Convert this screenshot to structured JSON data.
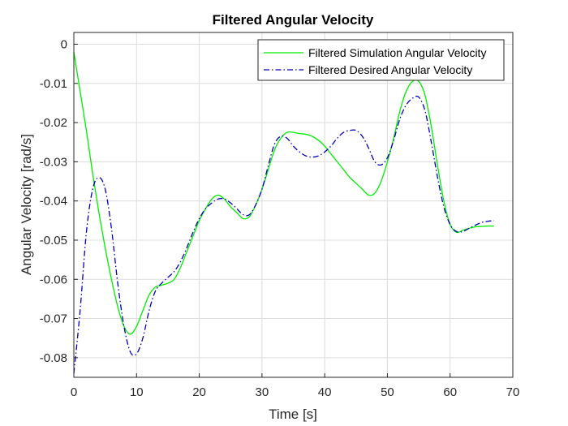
{
  "chart_data": {
    "type": "line",
    "title": "Filtered Angular Velocity",
    "xlabel": "Time [s]",
    "ylabel": "Angular Velocity [rad/s]",
    "xlim": [
      0,
      70
    ],
    "ylim": [
      -0.085,
      0.003
    ],
    "xticks": [
      0,
      10,
      20,
      30,
      40,
      50,
      60,
      70
    ],
    "yticks": [
      0,
      -0.01,
      -0.02,
      -0.03,
      -0.04,
      -0.05,
      -0.06,
      -0.07,
      -0.08
    ],
    "xtick_labels": [
      "0",
      "10",
      "20",
      "30",
      "40",
      "50",
      "60",
      "70"
    ],
    "ytick_labels": [
      "0",
      "-0.01",
      "-0.02",
      "-0.03",
      "-0.04",
      "-0.05",
      "-0.06",
      "-0.07",
      "-0.08"
    ],
    "grid": true,
    "legend_position": "top-right",
    "series": [
      {
        "name": "Filtered Simulation Angular Velocity",
        "color": "#00ee00",
        "style": "solid",
        "x": [
          0,
          1,
          2,
          3,
          4,
          5,
          6,
          7,
          8,
          9,
          10,
          11,
          12,
          13,
          14,
          15,
          16,
          17,
          18,
          19,
          20,
          21,
          22,
          23,
          24,
          25,
          26,
          27,
          28,
          29,
          30,
          31,
          32,
          33,
          34,
          35,
          36,
          37,
          38,
          39,
          40,
          41,
          42,
          43,
          44,
          45,
          46,
          47,
          48,
          49,
          50,
          51,
          52,
          53,
          54,
          55,
          56,
          57,
          58,
          59,
          60,
          61,
          62,
          63,
          64,
          65,
          66,
          67
        ],
        "y": [
          -0.002,
          -0.012,
          -0.022,
          -0.033,
          -0.043,
          -0.052,
          -0.06,
          -0.067,
          -0.072,
          -0.074,
          -0.072,
          -0.068,
          -0.064,
          -0.062,
          -0.0615,
          -0.061,
          -0.06,
          -0.057,
          -0.053,
          -0.049,
          -0.045,
          -0.042,
          -0.0395,
          -0.0385,
          -0.0395,
          -0.0415,
          -0.043,
          -0.0445,
          -0.044,
          -0.041,
          -0.037,
          -0.032,
          -0.027,
          -0.024,
          -0.0225,
          -0.0225,
          -0.0228,
          -0.023,
          -0.0235,
          -0.0245,
          -0.026,
          -0.028,
          -0.03,
          -0.032,
          -0.034,
          -0.0355,
          -0.037,
          -0.0385,
          -0.038,
          -0.035,
          -0.03,
          -0.024,
          -0.017,
          -0.012,
          -0.0095,
          -0.0095,
          -0.013,
          -0.021,
          -0.031,
          -0.04,
          -0.046,
          -0.048,
          -0.0475,
          -0.047,
          -0.0466,
          -0.0465,
          -0.0464,
          -0.0464
        ]
      },
      {
        "name": "Filtered Desired Angular Velocity",
        "color": "#0000bb",
        "style": "dashdot",
        "x": [
          0,
          1,
          2,
          3,
          4,
          5,
          6,
          7,
          8,
          9,
          10,
          11,
          12,
          13,
          14,
          15,
          16,
          17,
          18,
          19,
          20,
          21,
          22,
          23,
          24,
          25,
          26,
          27,
          28,
          29,
          30,
          31,
          32,
          33,
          34,
          35,
          36,
          37,
          38,
          39,
          40,
          41,
          42,
          43,
          44,
          45,
          46,
          47,
          48,
          49,
          50,
          51,
          52,
          53,
          54,
          55,
          56,
          57,
          58,
          59,
          60,
          61,
          62,
          63,
          64,
          65,
          66,
          67
        ],
        "y": [
          -0.084,
          -0.068,
          -0.048,
          -0.037,
          -0.034,
          -0.037,
          -0.047,
          -0.061,
          -0.072,
          -0.0785,
          -0.079,
          -0.075,
          -0.068,
          -0.063,
          -0.061,
          -0.0595,
          -0.058,
          -0.0555,
          -0.052,
          -0.048,
          -0.0445,
          -0.042,
          -0.0405,
          -0.0395,
          -0.0395,
          -0.0405,
          -0.042,
          -0.0435,
          -0.0435,
          -0.041,
          -0.037,
          -0.031,
          -0.0255,
          -0.0235,
          -0.024,
          -0.026,
          -0.0275,
          -0.0285,
          -0.0288,
          -0.0285,
          -0.0275,
          -0.026,
          -0.024,
          -0.0225,
          -0.022,
          -0.022,
          -0.0235,
          -0.0265,
          -0.03,
          -0.0308,
          -0.029,
          -0.0245,
          -0.019,
          -0.0155,
          -0.0138,
          -0.0135,
          -0.017,
          -0.025,
          -0.034,
          -0.0415,
          -0.046,
          -0.0478,
          -0.0478,
          -0.047,
          -0.0462,
          -0.0455,
          -0.0452,
          -0.045
        ]
      }
    ]
  }
}
